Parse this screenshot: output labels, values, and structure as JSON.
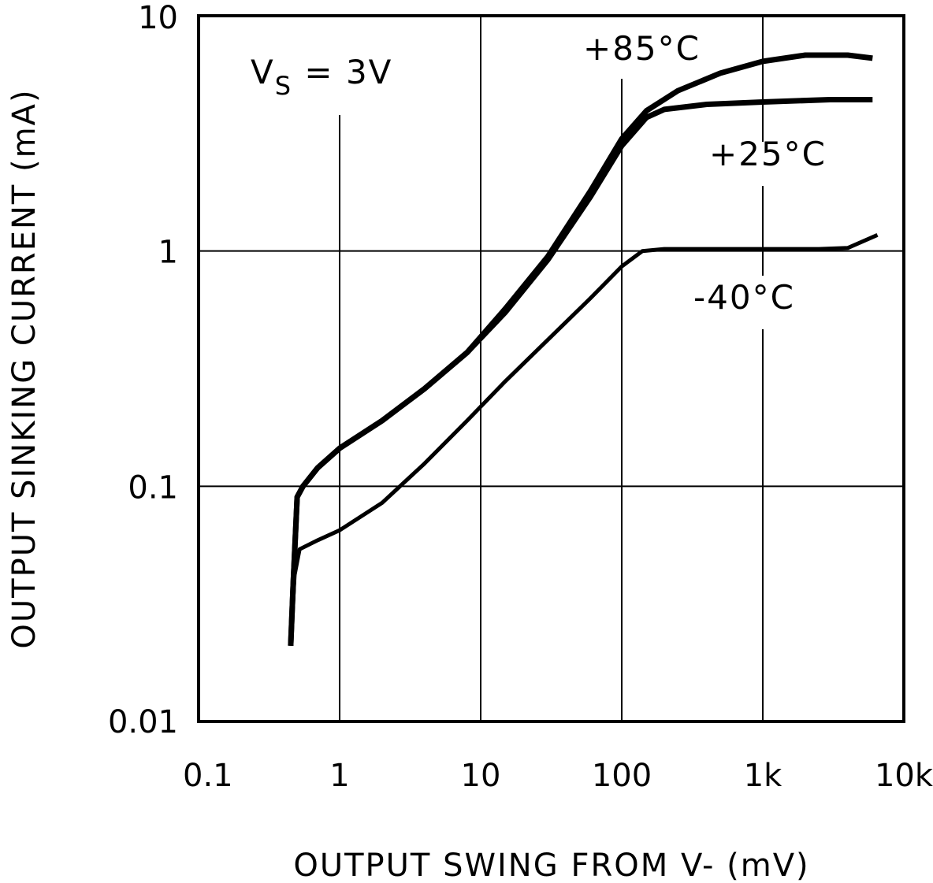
{
  "chart_data": {
    "type": "line",
    "title": "",
    "xlabel": "OUTPUT SWING FROM V- (mV)",
    "ylabel": "OUTPUT SINKING CURRENT (mA)",
    "xscale": "log",
    "yscale": "log",
    "xlim": [
      0.1,
      10000
    ],
    "ylim": [
      0.01,
      10
    ],
    "x_ticks": [
      0.1,
      1,
      10,
      100,
      1000,
      10000
    ],
    "x_tick_labels": [
      "0.1",
      "1",
      "10",
      "100",
      "1k",
      "10k"
    ],
    "y_ticks": [
      0.01,
      0.1,
      1,
      10
    ],
    "y_tick_labels": [
      "0.01",
      "0.1",
      "1",
      "10"
    ],
    "grid": true,
    "annotation": {
      "main": "V",
      "sub": "S",
      "rest": " = 3V"
    },
    "series": [
      {
        "name": "+85°C",
        "color": "#000000",
        "points": [
          [
            0.45,
            0.021
          ],
          [
            0.47,
            0.04
          ],
          [
            0.5,
            0.09
          ],
          [
            0.55,
            0.1
          ],
          [
            0.7,
            0.12
          ],
          [
            1.0,
            0.145
          ],
          [
            2.0,
            0.19
          ],
          [
            4.0,
            0.26
          ],
          [
            8.0,
            0.37
          ],
          [
            15.0,
            0.57
          ],
          [
            30.0,
            0.95
          ],
          [
            60.0,
            1.8
          ],
          [
            100.0,
            3.0
          ],
          [
            150.0,
            3.95
          ],
          [
            250.0,
            4.8
          ],
          [
            500.0,
            5.7
          ],
          [
            1000.0,
            6.4
          ],
          [
            2000.0,
            6.8
          ],
          [
            4000.0,
            6.8
          ],
          [
            6000.0,
            6.6
          ]
        ]
      },
      {
        "name": "+25°C",
        "color": "#000000",
        "points": [
          [
            0.45,
            0.021
          ],
          [
            0.47,
            0.04
          ],
          [
            0.5,
            0.09
          ],
          [
            0.55,
            0.1
          ],
          [
            0.7,
            0.12
          ],
          [
            1.0,
            0.145
          ],
          [
            2.0,
            0.19
          ],
          [
            4.0,
            0.26
          ],
          [
            8.0,
            0.37
          ],
          [
            15.0,
            0.55
          ],
          [
            30.0,
            0.92
          ],
          [
            60.0,
            1.7
          ],
          [
            100.0,
            2.8
          ],
          [
            150.0,
            3.7
          ],
          [
            200.0,
            4.0
          ],
          [
            400.0,
            4.2
          ],
          [
            1000.0,
            4.3
          ],
          [
            3000.0,
            4.4
          ],
          [
            6000.0,
            4.4
          ]
        ]
      },
      {
        "name": "-40°C",
        "color": "#000000",
        "points": [
          [
            0.45,
            0.021
          ],
          [
            0.48,
            0.042
          ],
          [
            0.52,
            0.054
          ],
          [
            0.7,
            0.059
          ],
          [
            1.0,
            0.065
          ],
          [
            2.0,
            0.085
          ],
          [
            4.0,
            0.125
          ],
          [
            8.0,
            0.19
          ],
          [
            15.0,
            0.28
          ],
          [
            30.0,
            0.42
          ],
          [
            60.0,
            0.63
          ],
          [
            100.0,
            0.86
          ],
          [
            140.0,
            1.0
          ],
          [
            200.0,
            1.02
          ],
          [
            1000.0,
            1.02
          ],
          [
            2500.0,
            1.02
          ],
          [
            4000.0,
            1.03
          ],
          [
            6500.0,
            1.17
          ]
        ]
      }
    ]
  }
}
